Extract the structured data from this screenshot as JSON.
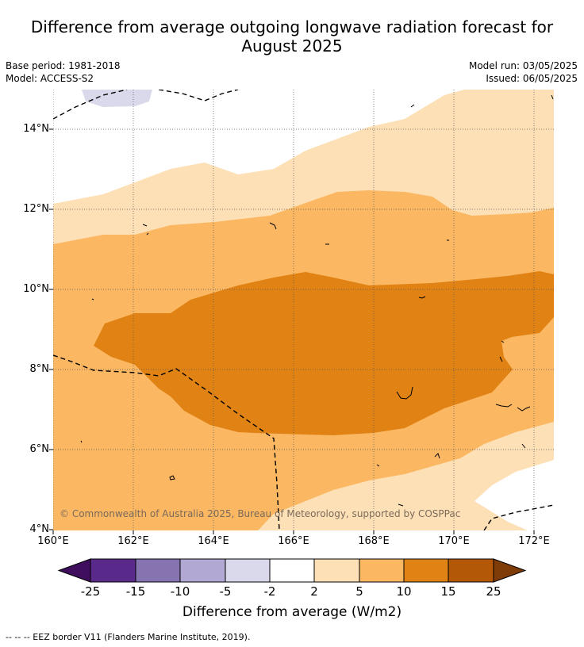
{
  "title_line1": "Difference from average outgoing longwave radiation forecast for",
  "title_line2": "August 2025",
  "base_period": "Base period: 1981-2018",
  "model": "Model: ACCESS-S2",
  "model_run": "Model run: 03/05/2025",
  "issued": "Issued: 06/05/2025",
  "lat_labels": [
    "14°N",
    "12°N",
    "10°N",
    "8°N",
    "6°N",
    "4°N"
  ],
  "lon_labels": [
    "160°E",
    "162°E",
    "164°E",
    "166°E",
    "168°E",
    "170°E",
    "172°E"
  ],
  "credit": "© Commonwealth of Australia 2025, Bureau of Meteorology, supported by COSPPac",
  "colorbar": {
    "ticks": [
      "-25",
      "-15",
      "-10",
      "-5",
      "-2",
      "2",
      "5",
      "10",
      "15",
      "25"
    ],
    "colors": [
      "#3f0f5e",
      "#5a2a8a",
      "#8574b0",
      "#b1a9d4",
      "#d9d9eb",
      "#ffffff",
      "#fde0b6",
      "#fbb762",
      "#e08214",
      "#b35806",
      "#7f3b08"
    ],
    "title": "Difference from average (W/m2)"
  },
  "footer": "--  --  -- EEZ border V11 (Flanders Marine Institute, 2019)."
}
